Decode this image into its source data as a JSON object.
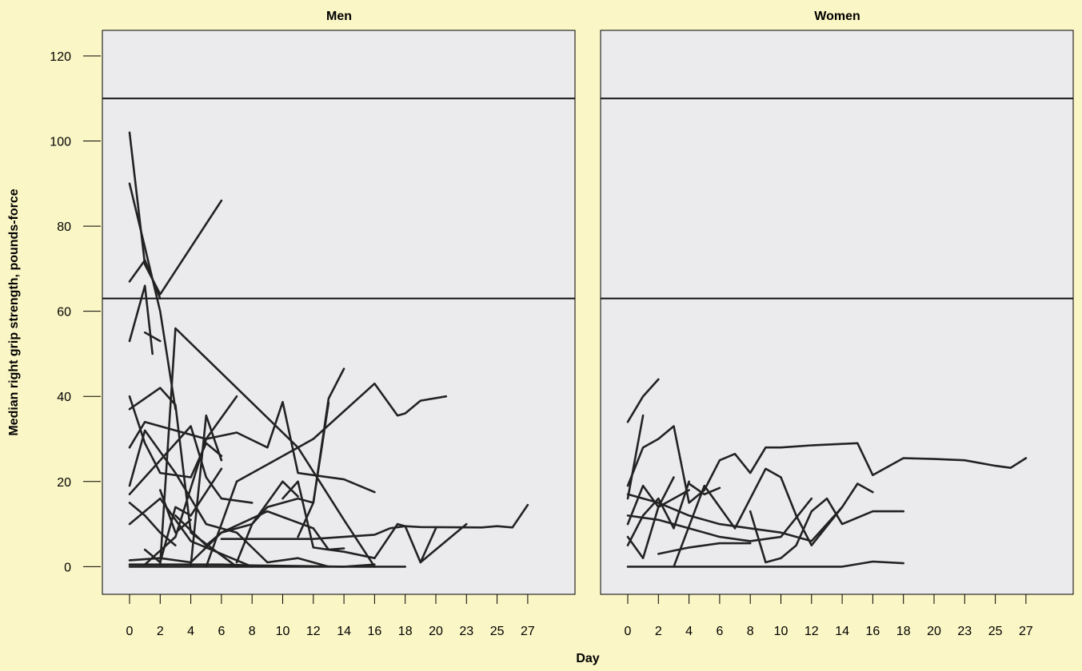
{
  "chart_data": {
    "type": "line",
    "ylabel": "Median right grip strength, pounds-force",
    "xlabel": "Day",
    "x_ticks": [
      0,
      2,
      4,
      6,
      8,
      10,
      12,
      14,
      16,
      18,
      20,
      23,
      25,
      27
    ],
    "y_ticks": [
      0,
      20,
      40,
      60,
      80,
      100,
      120
    ],
    "ylim": [
      -6.5,
      126
    ],
    "reference_lines": [
      63,
      110
    ],
    "panels": [
      {
        "title": "Men",
        "series": [
          {
            "x": [
              0,
              1,
              2,
              6
            ],
            "y": [
              102,
              71,
              64,
              86
            ]
          },
          {
            "x": [
              0,
              1,
              2,
              3
            ],
            "y": [
              90,
              75,
              60,
              37
            ]
          },
          {
            "x": [
              0,
              1,
              2
            ],
            "y": [
              67,
              72,
              63
            ]
          },
          {
            "x": [
              0,
              1,
              1.5
            ],
            "y": [
              53,
              66,
              50
            ]
          },
          {
            "x": [
              1,
              2
            ],
            "y": [
              55,
              53
            ]
          },
          {
            "x": [
              0,
              2,
              3,
              4,
              7
            ],
            "y": [
              37,
              42,
              38,
              8,
              0
            ]
          },
          {
            "x": [
              0,
              1,
              2,
              4,
              5,
              6
            ],
            "y": [
              40,
              29,
              22,
              21,
              29,
              26
            ]
          },
          {
            "x": [
              0,
              1,
              3,
              5,
              7,
              9,
              10,
              11,
              14,
              16
            ],
            "y": [
              28,
              34,
              32,
              30,
              31.5,
              28,
              38.7,
              22,
              20.5,
              17.5
            ]
          },
          {
            "x": [
              2,
              3,
              11,
              14,
              16
            ],
            "y": [
              0.5,
              56,
              28,
              11,
              0
            ]
          },
          {
            "x": [
              0,
              2,
              4,
              5,
              6,
              8
            ],
            "y": [
              17,
              25,
              33,
              21,
              16,
              15
            ]
          },
          {
            "x": [
              0,
              1,
              3,
              5,
              7,
              9,
              11,
              13
            ],
            "y": [
              19,
              32,
              22,
              10,
              8,
              1,
              2,
              0
            ]
          },
          {
            "x": [
              0,
              2,
              4,
              6,
              8
            ],
            "y": [
              10,
              16,
              6,
              3,
              0
            ]
          },
          {
            "x": [
              1,
              3,
              5,
              7
            ],
            "y": [
              0.5,
              7,
              30,
              40
            ]
          },
          {
            "x": [
              5,
              7,
              9,
              11,
              12,
              16,
              17.5,
              18,
              19,
              21
            ],
            "y": [
              0,
              20,
              24,
              28,
              30,
              43,
              35.5,
              36,
              39,
              40
            ]
          },
          {
            "x": [
              11,
              12,
              13,
              14
            ],
            "y": [
              7,
              15,
              39.5,
              46.5
            ]
          },
          {
            "x": [
              7,
              8,
              9,
              11,
              12,
              13
            ],
            "y": [
              1,
              10,
              14,
              16,
              15,
              38.5
            ]
          },
          {
            "x": [
              0,
              2,
              4,
              6,
              8,
              10,
              11
            ],
            "y": [
              1.5,
              2,
              1,
              8,
              10,
              20,
              16.5
            ]
          },
          {
            "x": [
              10,
              11,
              12,
              13,
              14
            ],
            "y": [
              16,
              20,
              4.5,
              4,
              4.3
            ]
          },
          {
            "x": [
              3,
              5,
              6,
              9,
              12,
              13,
              14,
              16
            ],
            "y": [
              12,
              5,
              8,
              13,
              9,
              4,
              3.5,
              2
            ]
          },
          {
            "x": [
              6,
              8,
              10,
              12,
              14,
              16,
              17,
              18,
              19,
              24,
              25,
              26,
              27
            ],
            "y": [
              6.5,
              6.5,
              6.5,
              6.5,
              7,
              7.5,
              9,
              9.5,
              9.3,
              9.2,
              9.5,
              9.2,
              14.5
            ]
          },
          {
            "x": [
              16,
              17.5,
              18,
              19,
              20
            ],
            "y": [
              2,
              10,
              9.5,
              1,
              9
            ]
          },
          {
            "x": [
              19,
              22,
              23
            ],
            "y": [
              1,
              8,
              10
            ]
          },
          {
            "x": [
              0,
              2,
              4,
              6,
              8,
              10,
              12,
              14,
              16,
              18
            ],
            "y": [
              0,
              0,
              0,
              0,
              0,
              0,
              0,
              0,
              0,
              0
            ]
          },
          {
            "x": [
              0,
              2,
              4,
              6,
              8,
              10,
              12,
              14,
              16
            ],
            "y": [
              0.5,
              0.5,
              0.5,
              0.5,
              0.3,
              0.2,
              0.1,
              0,
              0.5
            ]
          },
          {
            "x": [
              0,
              1,
              2,
              3
            ],
            "y": [
              15,
              12,
              8,
              5
            ]
          },
          {
            "x": [
              1,
              2,
              3,
              4,
              6
            ],
            "y": [
              4,
              1,
              14,
              12,
              23
            ]
          },
          {
            "x": [
              2,
              3,
              4
            ],
            "y": [
              18,
              8,
              11
            ]
          },
          {
            "x": [
              4,
              5,
              6
            ],
            "y": [
              0.3,
              35.5,
              25
            ]
          }
        ]
      },
      {
        "title": "Women",
        "series": [
          {
            "x": [
              0,
              1,
              2
            ],
            "y": [
              34,
              40,
              44
            ]
          },
          {
            "x": [
              0,
              1,
              2,
              3,
              4,
              5,
              6,
              7,
              8,
              9,
              10,
              12,
              15,
              16,
              18,
              20,
              23,
              25,
              26,
              27
            ],
            "y": [
              19,
              28,
              30,
              33,
              15,
              18,
              25,
              26.5,
              22,
              28,
              28,
              28.5,
              29,
              21.5,
              25.5,
              25.3,
              25,
              23.7,
              23.2,
              25.5
            ]
          },
          {
            "x": [
              0,
              1
            ],
            "y": [
              16,
              35.5
            ]
          },
          {
            "x": [
              0,
              2,
              4,
              6,
              8,
              10,
              12,
              14
            ],
            "y": [
              17,
              15,
              12,
              10,
              9,
              8,
              6,
              14
            ]
          },
          {
            "x": [
              3,
              5,
              7,
              9,
              10,
              11,
              12,
              14,
              15,
              16
            ],
            "y": [
              0,
              19,
              9,
              23,
              21,
              12,
              5,
              14,
              19.5,
              17.5
            ]
          },
          {
            "x": [
              0,
              2,
              4,
              6,
              8,
              10,
              12
            ],
            "y": [
              12,
              11,
              9,
              7,
              6,
              7,
              16
            ]
          },
          {
            "x": [
              8,
              9,
              10,
              11,
              12,
              13,
              14,
              16,
              18
            ],
            "y": [
              13,
              1,
              2,
              5,
              13,
              16,
              10,
              13,
              13
            ]
          },
          {
            "x": [
              0,
              2,
              4,
              6,
              8,
              10,
              12,
              14,
              16,
              18
            ],
            "y": [
              0,
              0,
              0,
              0,
              0,
              0,
              0,
              0,
              1.2,
              0.8
            ]
          },
          {
            "x": [
              0,
              1,
              2,
              3
            ],
            "y": [
              10,
              19,
              14,
              21
            ]
          },
          {
            "x": [
              0,
              1,
              2,
              3,
              4
            ],
            "y": [
              5,
              12,
              16,
              9,
              20
            ]
          },
          {
            "x": [
              2,
              4,
              6,
              8
            ],
            "y": [
              3,
              4.5,
              5.5,
              5.5
            ]
          },
          {
            "x": [
              0,
              1,
              2,
              4
            ],
            "y": [
              7,
              2,
              14,
              18
            ]
          },
          {
            "x": [
              4,
              5,
              6
            ],
            "y": [
              19.5,
              17,
              18.5
            ]
          }
        ]
      }
    ]
  }
}
